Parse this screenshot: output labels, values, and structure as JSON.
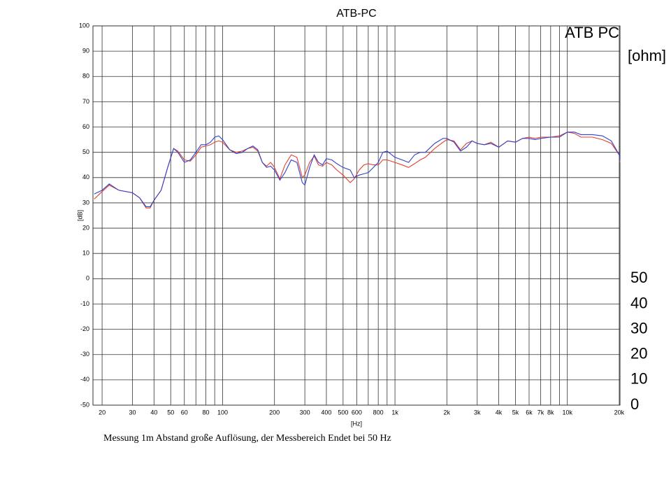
{
  "chart_data": {
    "type": "line",
    "title": "ATB-PC",
    "corner_label": "ATB PC",
    "xlabel": "[Hz]",
    "ylabel": "[dB]",
    "y2label": "[ohm]",
    "caption": "Messung 1m Abstand große Auflösung, der Messbereich Endet bei 50 Hz",
    "xscale": "log",
    "grid": true,
    "xlim": [
      17.7,
      20200
    ],
    "ylim": [
      -50,
      100
    ],
    "y2lim": [
      0,
      150
    ],
    "xticks": [
      20,
      30,
      40,
      50,
      60,
      80,
      100,
      200,
      300,
      400,
      500,
      600,
      800,
      {
        "value": 1000,
        "label": "1k"
      },
      {
        "value": 2000,
        "label": "2k"
      },
      {
        "value": 3000,
        "label": "3k"
      },
      {
        "value": 4000,
        "label": "4k"
      },
      {
        "value": 5000,
        "label": "5k"
      },
      {
        "value": 6000,
        "label": "6k"
      },
      {
        "value": 7000,
        "label": "7k"
      },
      {
        "value": 8000,
        "label": "8k"
      },
      {
        "value": 10000,
        "label": "10k"
      },
      {
        "value": 20000,
        "label": "20k"
      }
    ],
    "xminor": [
      70,
      90,
      700,
      900,
      9000
    ],
    "yticks": [
      -50,
      -40,
      -30,
      -20,
      -10,
      0,
      10,
      20,
      30,
      40,
      50,
      60,
      70,
      80,
      90,
      100
    ],
    "y2ticks": [
      0,
      10,
      20,
      30,
      40,
      50
    ],
    "x": [
      18,
      20,
      22,
      25,
      30,
      33,
      36,
      38,
      40,
      44,
      48,
      52,
      55,
      60,
      65,
      70,
      75,
      80,
      85,
      90,
      95,
      100,
      110,
      120,
      130,
      140,
      150,
      160,
      170,
      180,
      190,
      200,
      215,
      230,
      250,
      270,
      290,
      300,
      320,
      340,
      360,
      380,
      400,
      430,
      460,
      500,
      550,
      580,
      620,
      660,
      700,
      750,
      800,
      850,
      900,
      1000,
      1100,
      1200,
      1300,
      1400,
      1500,
      1700,
      1900,
      2000,
      2200,
      2400,
      2600,
      2800,
      3000,
      3300,
      3600,
      4000,
      4500,
      5000,
      5500,
      6000,
      6500,
      7000,
      8000,
      9000,
      10000,
      11000,
      12000,
      14000,
      16000,
      18000,
      20000,
      20200
    ],
    "series": [
      {
        "color": "#e04030",
        "values": [
          31.5,
          34.5,
          37,
          35,
          34,
          32,
          28,
          28,
          31,
          35,
          44,
          51.5,
          50.5,
          47,
          46.5,
          49,
          52,
          52.5,
          53,
          54,
          54.5,
          54,
          51,
          50,
          50.5,
          51.5,
          52,
          50.5,
          46,
          44.5,
          46,
          44,
          39.5,
          45,
          49,
          48,
          40,
          41,
          46,
          48.5,
          45,
          44.5,
          46,
          45,
          43,
          41,
          38,
          39.5,
          43,
          45,
          45.5,
          45,
          45,
          47,
          47,
          46,
          45,
          44,
          45.5,
          47,
          48,
          51.5,
          54,
          55,
          54.5,
          51,
          53.5,
          54.5,
          53.5,
          53,
          54,
          52,
          54.5,
          54,
          55.5,
          56,
          55.5,
          56,
          56,
          56.5,
          58,
          57.5,
          56,
          56,
          55,
          53.5,
          49,
          46
        ]
      },
      {
        "color": "#3040d0",
        "values": [
          33.5,
          35,
          37.5,
          35,
          34,
          32,
          28.5,
          28.5,
          31,
          35,
          44,
          51.5,
          50,
          46,
          47,
          50,
          53,
          53,
          54,
          56,
          56.5,
          55,
          51,
          49.5,
          50,
          51.5,
          52.5,
          51,
          46,
          44,
          44.5,
          43,
          39,
          42,
          47,
          46,
          38,
          37,
          44,
          49,
          46,
          45,
          47.5,
          47,
          45.5,
          44,
          43,
          40,
          41,
          41.5,
          42,
          44,
          46,
          50,
          50.5,
          48,
          47,
          46,
          49,
          50,
          50,
          53.5,
          55.5,
          55.5,
          54,
          50.5,
          52,
          54.5,
          53.5,
          53,
          53.5,
          52,
          54.5,
          54,
          55.5,
          55.5,
          55,
          55.5,
          56,
          56,
          58,
          58,
          57,
          57,
          56.5,
          54.5,
          49,
          46.5
        ]
      }
    ]
  }
}
